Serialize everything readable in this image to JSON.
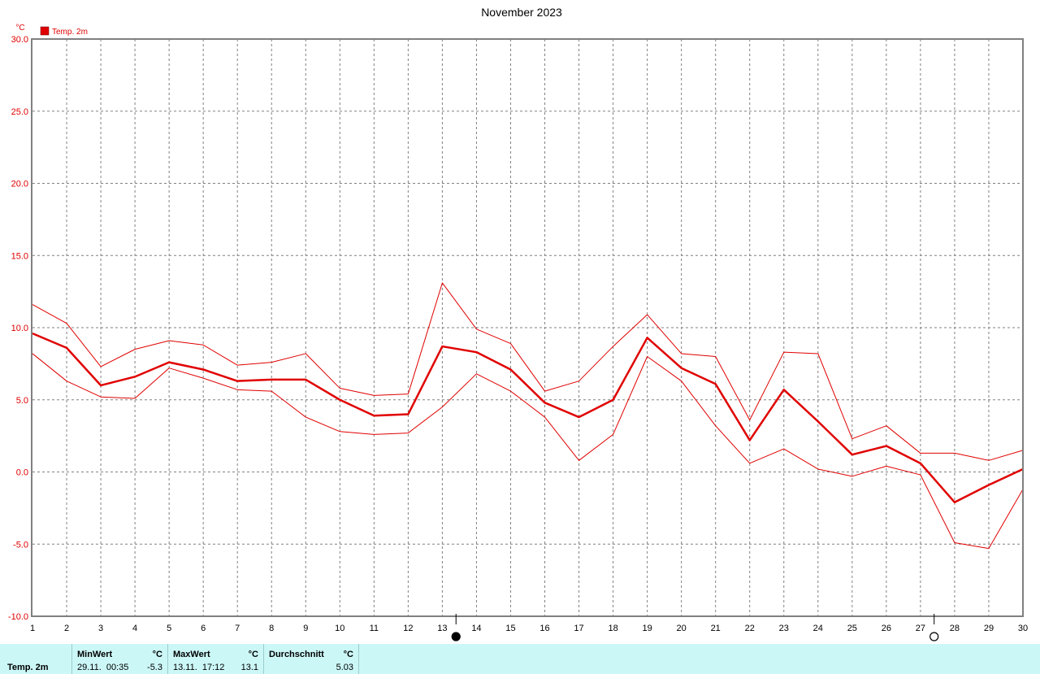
{
  "chart_data": {
    "type": "line",
    "title": "November 2023",
    "ylabel": "°C",
    "legend": "Temp. 2m",
    "legend_placement": "top-left",
    "colors": {
      "series": "#e00000",
      "axis_text": "#e00000",
      "grid": "#808080"
    },
    "ylim": [
      -10,
      30
    ],
    "yticks": [
      "30.0",
      "25.0",
      "20.0",
      "15.0",
      "10.0",
      "5.0",
      "0.0",
      "-5.0",
      "-10.0"
    ],
    "x": [
      1,
      2,
      3,
      4,
      5,
      6,
      7,
      8,
      9,
      10,
      11,
      12,
      13,
      14,
      15,
      16,
      17,
      18,
      19,
      20,
      21,
      22,
      23,
      24,
      25,
      26,
      27,
      28,
      29,
      30
    ],
    "series": [
      {
        "name": "Temp. 2m",
        "role": "mean",
        "values": [
          9.6,
          8.6,
          6.0,
          6.6,
          7.6,
          7.1,
          6.3,
          6.4,
          6.4,
          5.0,
          3.9,
          4.0,
          8.7,
          8.3,
          7.1,
          4.8,
          3.8,
          5.0,
          9.3,
          7.2,
          6.1,
          2.2,
          5.7,
          3.5,
          1.2,
          1.8,
          0.6,
          -2.1,
          -0.9,
          0.2
        ]
      },
      {
        "role": "max",
        "values": [
          11.6,
          10.3,
          7.3,
          8.5,
          9.1,
          8.8,
          7.4,
          7.6,
          8.2,
          5.8,
          5.3,
          5.4,
          13.1,
          9.9,
          8.9,
          5.6,
          6.3,
          8.7,
          10.9,
          8.2,
          8.0,
          3.6,
          8.3,
          8.2,
          2.3,
          3.2,
          1.3,
          1.3,
          0.8,
          1.5
        ]
      },
      {
        "role": "min",
        "values": [
          8.2,
          6.3,
          5.2,
          5.1,
          7.2,
          6.5,
          5.7,
          5.6,
          3.8,
          2.8,
          2.6,
          2.7,
          4.5,
          6.8,
          5.6,
          3.8,
          0.8,
          2.6,
          8.0,
          6.3,
          3.2,
          0.6,
          1.6,
          0.2,
          -0.3,
          0.4,
          -0.2,
          -4.9,
          -5.3,
          -1.2
        ]
      }
    ],
    "moon_markers": [
      {
        "symbol": "new-moon",
        "day": 13.4
      },
      {
        "symbol": "full-moon",
        "day": 27.4
      }
    ]
  },
  "stats_table": {
    "series_label": "Temp. 2m",
    "min_header": "MinWert",
    "min_unit": "°C",
    "min_time": "29.11.  00:35",
    "min_value": "-5.3",
    "max_header": "MaxWert",
    "max_unit": "°C",
    "max_time": "13.11.  17:12",
    "max_value": "13.1",
    "avg_header": "Durchschnitt",
    "avg_unit": "°C",
    "avg_value": "5.03"
  }
}
